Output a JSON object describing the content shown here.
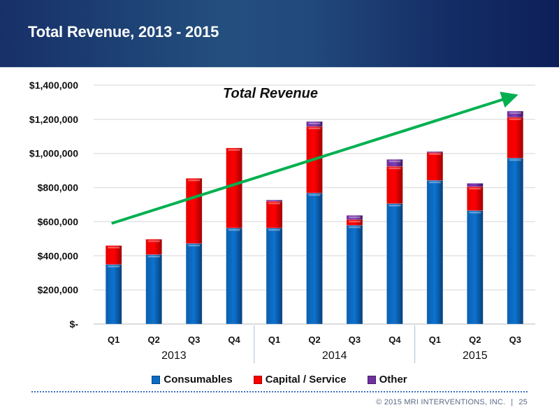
{
  "header": {
    "title": "Total Revenue, 2013 - 2015"
  },
  "chart_data": {
    "type": "bar",
    "stacked": true,
    "title": "Total Revenue",
    "xlabel": "",
    "ylabel": "",
    "categories": [
      "Q1",
      "Q2",
      "Q3",
      "Q4",
      "Q1",
      "Q2",
      "Q3",
      "Q4",
      "Q1",
      "Q2",
      "Q3"
    ],
    "groups": [
      {
        "label": "2013",
        "count": 4
      },
      {
        "label": "2014",
        "count": 4
      },
      {
        "label": "2015",
        "count": 3
      }
    ],
    "series": [
      {
        "name": "Consumables",
        "color": "#0b6cc4",
        "values": [
          349000,
          407000,
          472000,
          563000,
          563000,
          768000,
          579000,
          706000,
          842000,
          665000,
          973000
        ]
      },
      {
        "name": "Capital / Service",
        "color": "#ff0000",
        "values": [
          111000,
          90000,
          382000,
          469000,
          156000,
          390000,
          33000,
          218000,
          166000,
          140000,
          239000
        ]
      },
      {
        "name": "Other",
        "color": "#7030a0",
        "values": [
          0,
          0,
          0,
          0,
          8000,
          29000,
          25000,
          41000,
          3000,
          20000,
          36000
        ]
      }
    ],
    "ylim": [
      0,
      1400000
    ],
    "yticks": [
      {
        "value": 0,
        "label": "$-"
      },
      {
        "value": 200000,
        "label": "$200,000"
      },
      {
        "value": 400000,
        "label": "$400,000"
      },
      {
        "value": 600000,
        "label": "$600,000"
      },
      {
        "value": 800000,
        "label": "$800,000"
      },
      {
        "value": 1000000,
        "label": "$1,000,000"
      },
      {
        "value": 1200000,
        "label": "$1,200,000"
      },
      {
        "value": 1400000,
        "label": "$1,400,000"
      }
    ],
    "grid": true,
    "legend_position": "bottom",
    "trend_arrow": {
      "color": "#00b050",
      "from": {
        "category_index": 0,
        "value": 590000
      },
      "to": {
        "category_index": 10,
        "value": 1330000
      }
    }
  },
  "legend": [
    {
      "label": "Consumables",
      "color": "#0b6cc4"
    },
    {
      "label": "Capital / Service",
      "color": "#ff0000"
    },
    {
      "label": "Other",
      "color": "#7030a0"
    }
  ],
  "footer": {
    "copyright": "© 2015 MRI INTERVENTIONS, INC.",
    "separator": "|",
    "page": "25"
  }
}
